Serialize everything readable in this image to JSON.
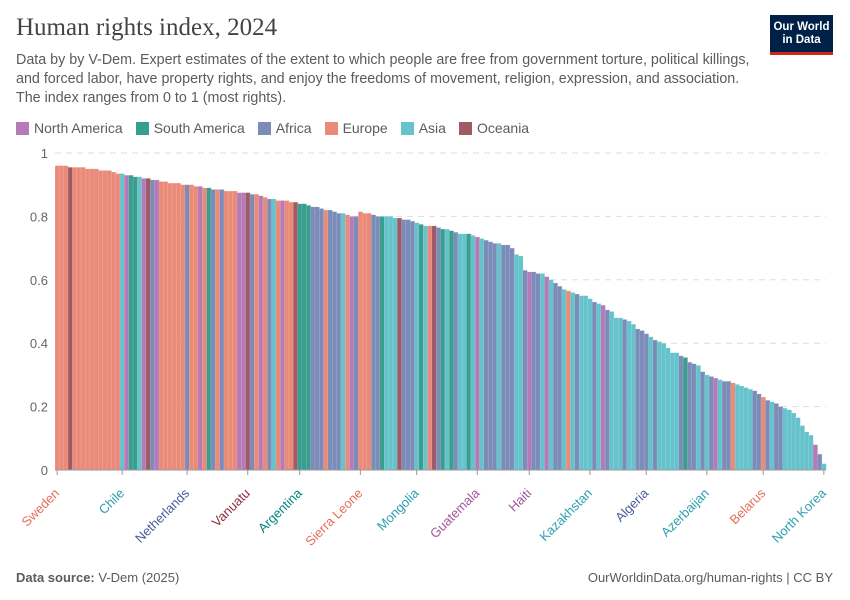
{
  "header": {
    "title": "Human rights index, 2024",
    "subtitle": "Data by by V-Dem. Expert estimates of the extent to which people are free from government torture, political killings, and forced labor, have property rights, and enjoy the freedoms of movement, religion, expression, and association. The index ranges from 0 to 1 (most rights).",
    "logo_text": "Our World in Data"
  },
  "footer": {
    "source_label": "Data source:",
    "source": "V-Dem (2025)",
    "url_license": "OurWorldinData.org/human-rights | CC BY"
  },
  "chart_data": {
    "type": "bar",
    "title": "Human rights index, 2024",
    "ylim": [
      0,
      1
    ],
    "yticks": [
      "0",
      "0.2",
      "0.4",
      "0.6",
      "0.8",
      "1"
    ],
    "grid": true,
    "legend_placement": "top-left",
    "legend": [
      {
        "code": "N",
        "name": "North America",
        "color": "#b77ab9",
        "label_color": "#a2559c"
      },
      {
        "code": "S",
        "name": "South America",
        "color": "#3a9e8e",
        "label_color": "#00847e"
      },
      {
        "code": "F",
        "name": "Africa",
        "color": "#7c8cb8",
        "label_color": "#4c5c9b"
      },
      {
        "code": "E",
        "name": "Europe",
        "color": "#ea8a78",
        "label_color": "#e56e5a"
      },
      {
        "code": "A",
        "name": "Asia",
        "color": "#66c3cc",
        "label_color": "#2c9fb0"
      },
      {
        "code": "O",
        "name": "Oceania",
        "color": "#a05a66",
        "label_color": "#883039"
      }
    ],
    "values": [
      0.96,
      0.96,
      0.96,
      0.955,
      0.955,
      0.955,
      0.955,
      0.95,
      0.95,
      0.95,
      0.945,
      0.945,
      0.945,
      0.94,
      0.935,
      0.935,
      0.93,
      0.93,
      0.925,
      0.925,
      0.92,
      0.92,
      0.915,
      0.915,
      0.91,
      0.91,
      0.905,
      0.905,
      0.905,
      0.9,
      0.9,
      0.9,
      0.895,
      0.895,
      0.89,
      0.89,
      0.885,
      0.885,
      0.885,
      0.88,
      0.88,
      0.88,
      0.875,
      0.875,
      0.875,
      0.87,
      0.87,
      0.865,
      0.86,
      0.855,
      0.855,
      0.85,
      0.85,
      0.85,
      0.845,
      0.845,
      0.84,
      0.84,
      0.835,
      0.83,
      0.83,
      0.825,
      0.82,
      0.82,
      0.815,
      0.81,
      0.81,
      0.805,
      0.8,
      0.8,
      0.815,
      0.81,
      0.81,
      0.805,
      0.8,
      0.8,
      0.8,
      0.8,
      0.795,
      0.795,
      0.79,
      0.79,
      0.785,
      0.78,
      0.775,
      0.77,
      0.77,
      0.77,
      0.765,
      0.76,
      0.76,
      0.755,
      0.75,
      0.745,
      0.745,
      0.745,
      0.74,
      0.735,
      0.73,
      0.725,
      0.72,
      0.715,
      0.715,
      0.71,
      0.71,
      0.7,
      0.68,
      0.675,
      0.63,
      0.625,
      0.625,
      0.62,
      0.62,
      0.61,
      0.6,
      0.59,
      0.58,
      0.57,
      0.565,
      0.56,
      0.555,
      0.55,
      0.55,
      0.54,
      0.53,
      0.525,
      0.52,
      0.505,
      0.5,
      0.48,
      0.48,
      0.475,
      0.47,
      0.46,
      0.445,
      0.44,
      0.43,
      0.42,
      0.41,
      0.405,
      0.4,
      0.385,
      0.37,
      0.37,
      0.36,
      0.355,
      0.34,
      0.335,
      0.33,
      0.31,
      0.3,
      0.295,
      0.29,
      0.285,
      0.28,
      0.28,
      0.275,
      0.27,
      0.265,
      0.26,
      0.255,
      0.25,
      0.24,
      0.23,
      0.22,
      0.215,
      0.21,
      0.2,
      0.195,
      0.19,
      0.18,
      0.165,
      0.14,
      0.12,
      0.11,
      0.08,
      0.05,
      0.02
    ],
    "regions": [
      "E",
      "E",
      "E",
      "O",
      "E",
      "E",
      "E",
      "E",
      "E",
      "E",
      "E",
      "E",
      "E",
      "E",
      "E",
      "A",
      "N",
      "S",
      "S",
      "A",
      "N",
      "O",
      "F",
      "N",
      "E",
      "E",
      "E",
      "E",
      "E",
      "E",
      "F",
      "E",
      "E",
      "N",
      "E",
      "S",
      "F",
      "E",
      "F",
      "E",
      "E",
      "E",
      "N",
      "N",
      "O",
      "F",
      "E",
      "N",
      "E",
      "F",
      "A",
      "E",
      "N",
      "E",
      "E",
      "O",
      "S",
      "S",
      "S",
      "F",
      "F",
      "F",
      "E",
      "F",
      "F",
      "F",
      "A",
      "E",
      "N",
      "F",
      "E",
      "E",
      "E",
      "F",
      "F",
      "S",
      "A",
      "A",
      "A",
      "O",
      "F",
      "F",
      "F",
      "A",
      "S",
      "A",
      "E",
      "O",
      "F",
      "S",
      "A",
      "S",
      "F",
      "A",
      "A",
      "S",
      "A",
      "N",
      "A",
      "F",
      "F",
      "F",
      "A",
      "F",
      "F",
      "F",
      "A",
      "A",
      "F",
      "N",
      "F",
      "F",
      "A",
      "N",
      "A",
      "F",
      "F",
      "A",
      "E",
      "A",
      "F",
      "A",
      "A",
      "A",
      "F",
      "A",
      "N",
      "F",
      "A",
      "A",
      "A",
      "F",
      "A",
      "A",
      "F",
      "F",
      "F",
      "A",
      "F",
      "A",
      "A",
      "A",
      "A",
      "A",
      "F",
      "S",
      "F",
      "F",
      "A",
      "F",
      "A",
      "F",
      "N",
      "A",
      "F",
      "F",
      "E",
      "A",
      "A",
      "A",
      "A",
      "F",
      "F",
      "E",
      "F",
      "A",
      "F",
      "F",
      "A",
      "A",
      "A",
      "A",
      "A",
      "A",
      "A",
      "N",
      "F",
      "A"
    ],
    "labeled_bars": [
      {
        "index": 0,
        "label": "Sweden"
      },
      {
        "index": 15,
        "label": "Chile"
      },
      {
        "index": 30,
        "label": "Netherlands"
      },
      {
        "index": 44,
        "label": "Vanuatu"
      },
      {
        "index": 56,
        "label": "Argentina"
      },
      {
        "index": 70,
        "label": "Sierra Leone"
      },
      {
        "index": 83,
        "label": "Mongolia"
      },
      {
        "index": 97,
        "label": "Guatemala"
      },
      {
        "index": 109,
        "label": "Haiti"
      },
      {
        "index": 123,
        "label": "Kazakhstan"
      },
      {
        "index": 136,
        "label": "Algeria"
      },
      {
        "index": 150,
        "label": "Azerbaijan"
      },
      {
        "index": 163,
        "label": "Belarus"
      },
      {
        "index": 177,
        "label": "North Korea"
      }
    ]
  }
}
